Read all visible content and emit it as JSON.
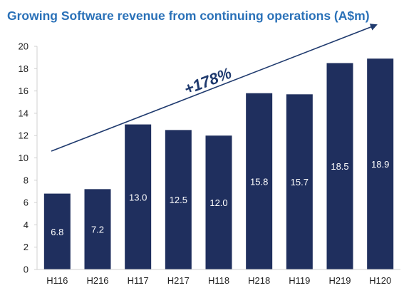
{
  "chart_data": {
    "type": "bar",
    "title": "Growing Software revenue from continuing operations (A$m)",
    "categories": [
      "H116",
      "H216",
      "H117",
      "H217",
      "H118",
      "H218",
      "H119",
      "H219",
      "H120"
    ],
    "values": [
      6.8,
      7.2,
      13.0,
      12.5,
      12.0,
      15.8,
      15.7,
      18.5,
      18.9
    ],
    "data_labels": [
      "6.8",
      "7.2",
      "13.0",
      "12.5",
      "12.0",
      "15.8",
      "15.7",
      "18.5",
      "18.9"
    ],
    "ylim": [
      0,
      20
    ],
    "yticks": [
      0,
      2,
      4,
      6,
      8,
      10,
      12,
      14,
      16,
      18,
      20
    ],
    "grid": false,
    "annotation": {
      "text": "+178%"
    },
    "colors": {
      "bar": "#1f2f5e",
      "title": "#2a71b8",
      "arrow": "#1f3a6e",
      "annotation": "#1f3a6e"
    }
  }
}
